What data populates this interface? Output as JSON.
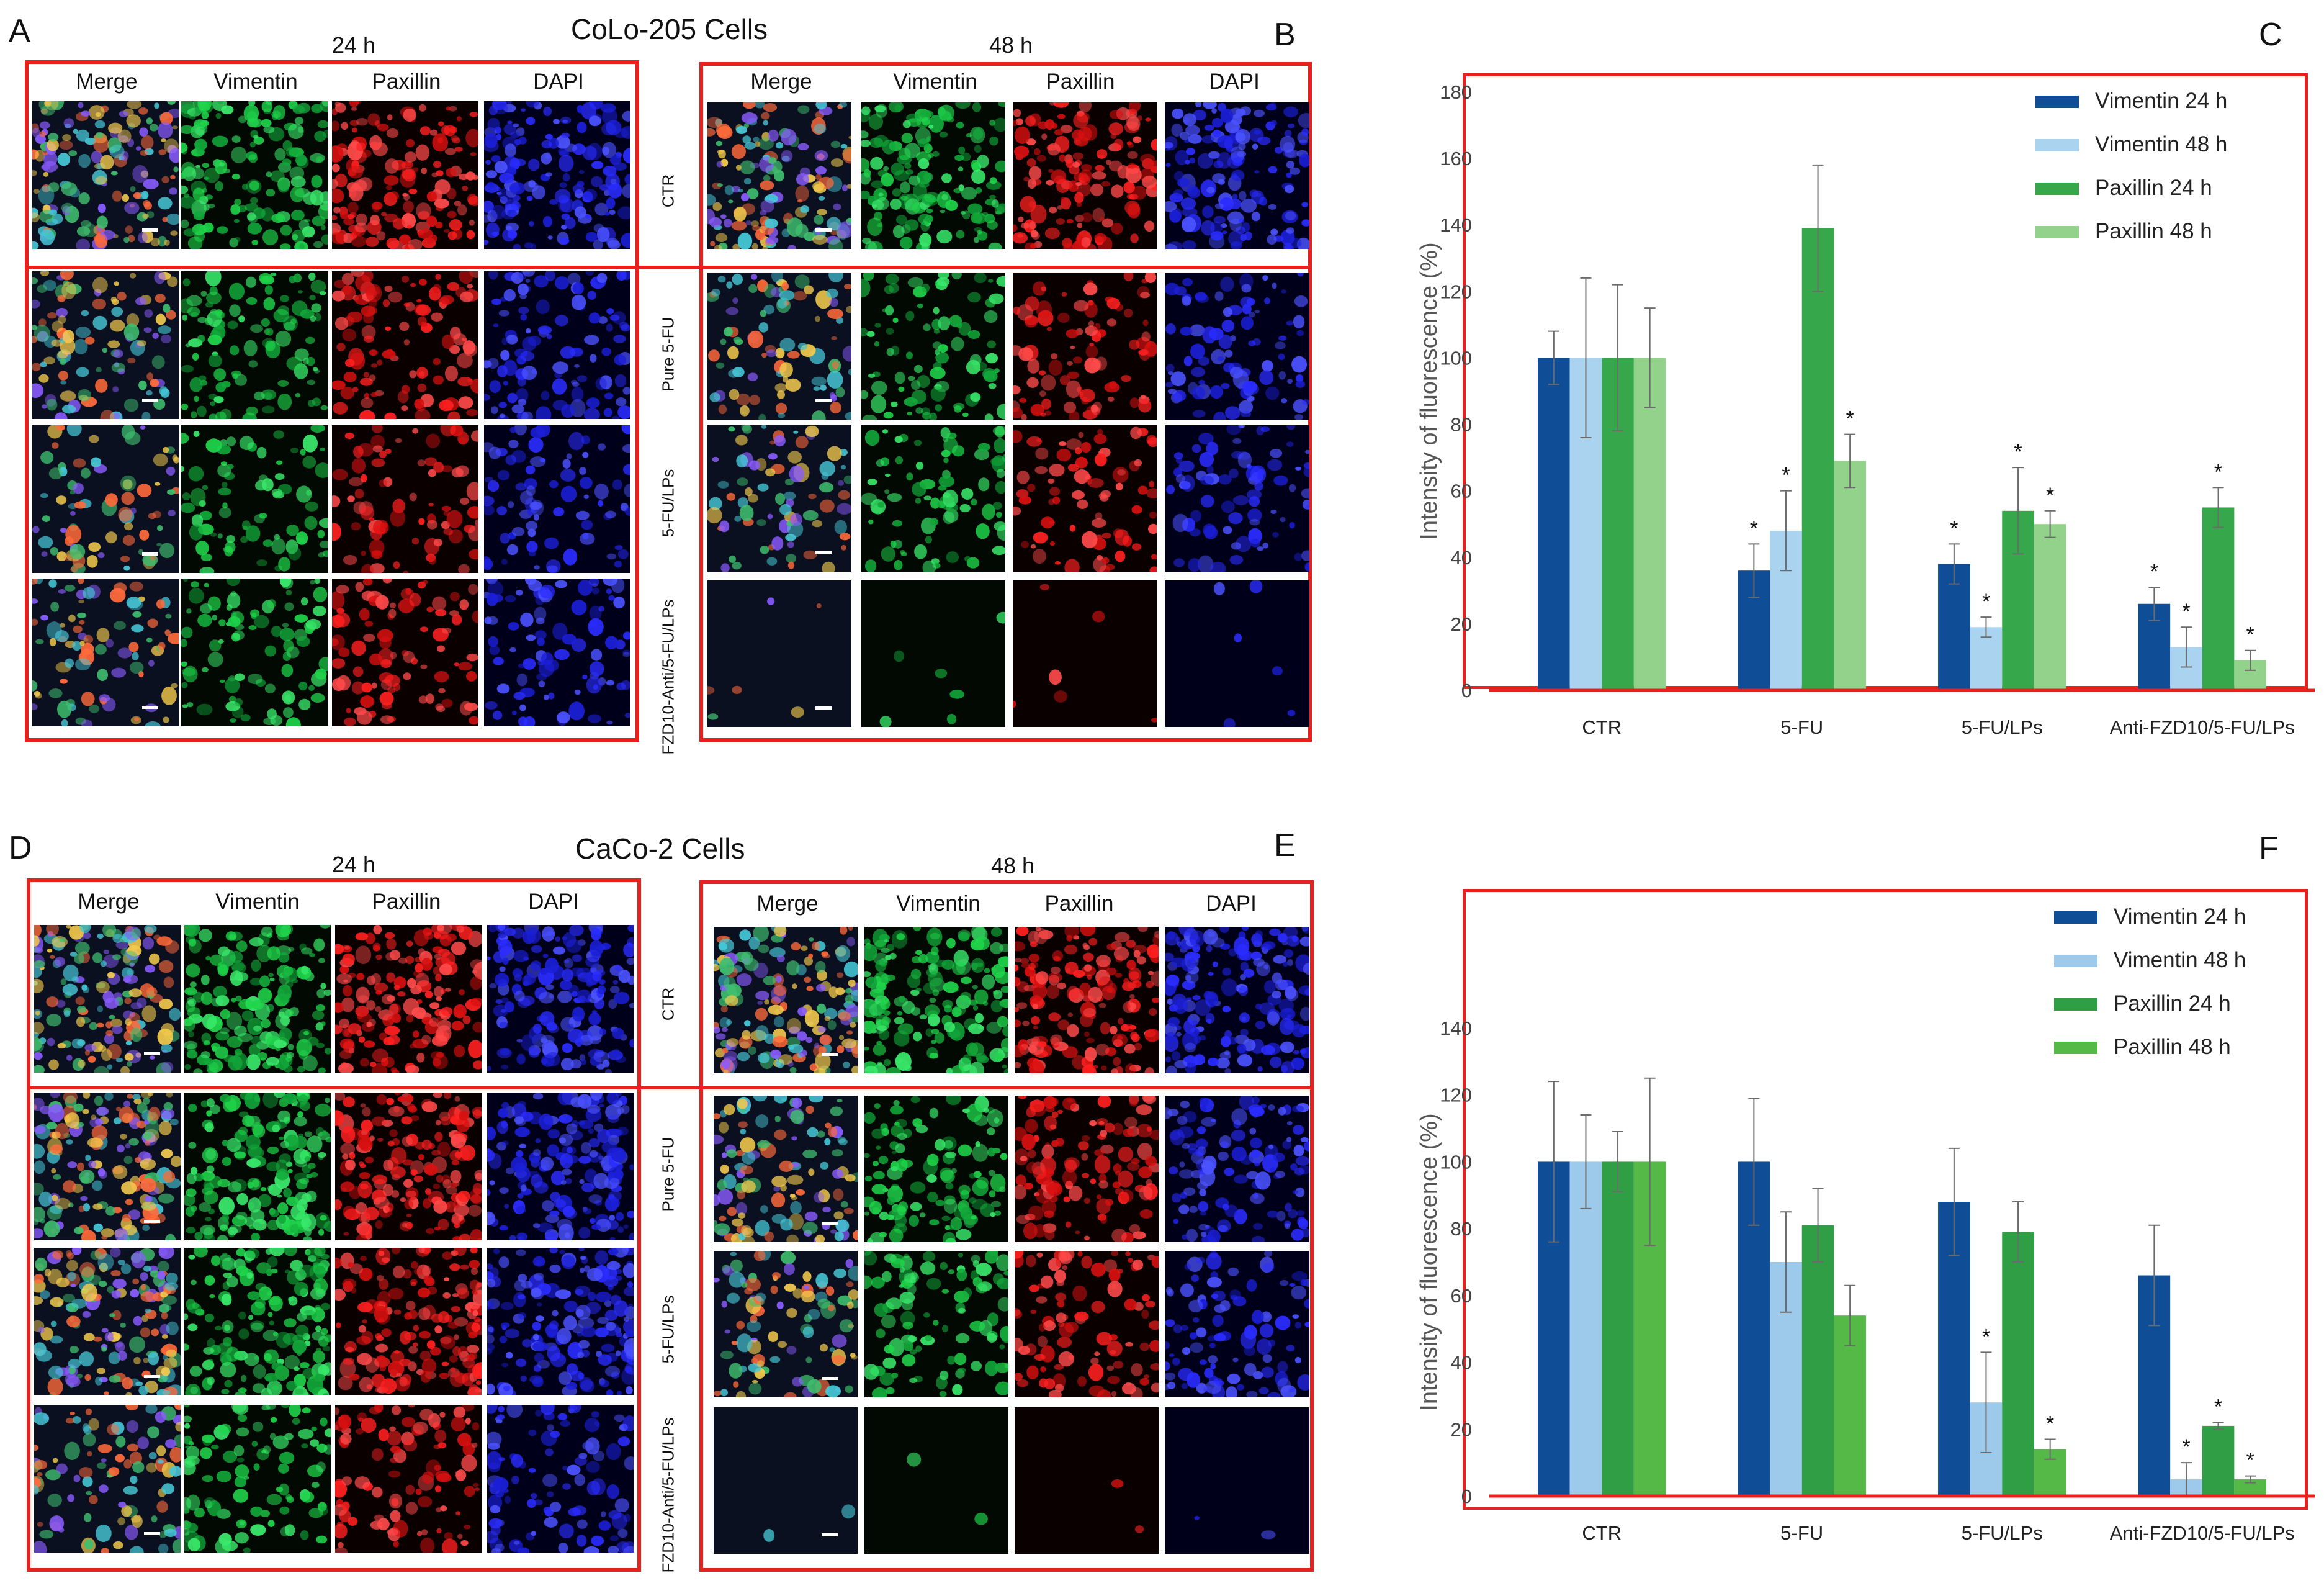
{
  "panel_letters": {
    "A": "A",
    "B": "B",
    "C": "C",
    "D": "D",
    "E": "E",
    "F": "F"
  },
  "cell_lines": {
    "top": "CoLo-205 Cells",
    "bottom": "CaCo-2 Cells"
  },
  "times": {
    "t24": "24 h",
    "t48": "48 h"
  },
  "channels": [
    "Merge",
    "Vimentin",
    "Paxillin",
    "DAPI"
  ],
  "rows": {
    "top": [
      "CTR",
      "Pure 5-FU",
      "5-FU/LPs",
      "FZD10-Anti/5-FU/LPs"
    ],
    "bottom": [
      "CTR",
      "Pure 5-FU",
      "5-FU/LPs",
      "FZD10-Anti/5-FU/LPs"
    ]
  },
  "colors": {
    "frame": "#e8211f",
    "vim24": "#0f4e96",
    "vim48": "#9dc9ea",
    "pax24": "#2f9e45",
    "pax48": "#55b948",
    "vim48_c": "#aad3f0",
    "pax24_c": "#36a84b",
    "pax48_c": "#92d28a"
  },
  "chart_data": [
    {
      "panel": "C",
      "type": "bar",
      "title": "",
      "xlabel": "",
      "ylabel": "Intensity of fluorescence (%)",
      "ylim": [
        0,
        180
      ],
      "yticks": [
        0,
        20,
        40,
        60,
        80,
        100,
        120,
        140,
        160,
        180
      ],
      "categories": [
        "CTR",
        "5-FU",
        "5-FU/LPs",
        "Anti-FZD10/5-FU/LPs"
      ],
      "series": [
        {
          "name": "Vimentin 24 h",
          "values": [
            100,
            36,
            38,
            26
          ],
          "errors": [
            8,
            8,
            6,
            5
          ],
          "star": [
            false,
            true,
            true,
            true
          ]
        },
        {
          "name": "Vimentin 48 h",
          "values": [
            100,
            48,
            19,
            13
          ],
          "errors": [
            24,
            12,
            3,
            6
          ],
          "star": [
            false,
            true,
            true,
            true
          ]
        },
        {
          "name": "Paxillin 24 h",
          "values": [
            100,
            139,
            54,
            55
          ],
          "errors": [
            22,
            19,
            13,
            6
          ],
          "star": [
            false,
            false,
            true,
            true
          ]
        },
        {
          "name": "Paxillin 48 h",
          "values": [
            100,
            69,
            50,
            9
          ],
          "errors": [
            15,
            8,
            4,
            3
          ],
          "star": [
            false,
            true,
            true,
            true
          ]
        }
      ],
      "legend": "top-right",
      "grid": false
    },
    {
      "panel": "F",
      "type": "bar",
      "title": "",
      "xlabel": "",
      "ylabel": "Intensity of fluorescence (%)",
      "ylim": [
        0,
        140
      ],
      "yticks": [
        0,
        20,
        40,
        60,
        80,
        100,
        120,
        140
      ],
      "categories": [
        "CTR",
        "5-FU",
        "5-FU/LPs",
        "Anti-FZD10/5-FU/LPs"
      ],
      "series": [
        {
          "name": "Vimentin 24 h",
          "values": [
            100,
            100,
            88,
            66
          ],
          "errors": [
            24,
            19,
            16,
            15
          ],
          "star": [
            false,
            false,
            false,
            false
          ]
        },
        {
          "name": "Vimentin 48 h",
          "values": [
            100,
            70,
            28,
            5
          ],
          "errors": [
            14,
            15,
            15,
            5
          ],
          "star": [
            false,
            false,
            true,
            true
          ]
        },
        {
          "name": "Paxillin 24 h",
          "values": [
            100,
            81,
            79,
            21
          ],
          "errors": [
            9,
            11,
            9,
            1
          ],
          "star": [
            false,
            false,
            false,
            true
          ]
        },
        {
          "name": "Paxillin 48 h",
          "values": [
            100,
            54,
            14,
            5
          ],
          "errors": [
            25,
            9,
            3,
            1
          ],
          "star": [
            false,
            false,
            true,
            true
          ]
        }
      ],
      "legend": "top-right",
      "grid": false
    }
  ]
}
